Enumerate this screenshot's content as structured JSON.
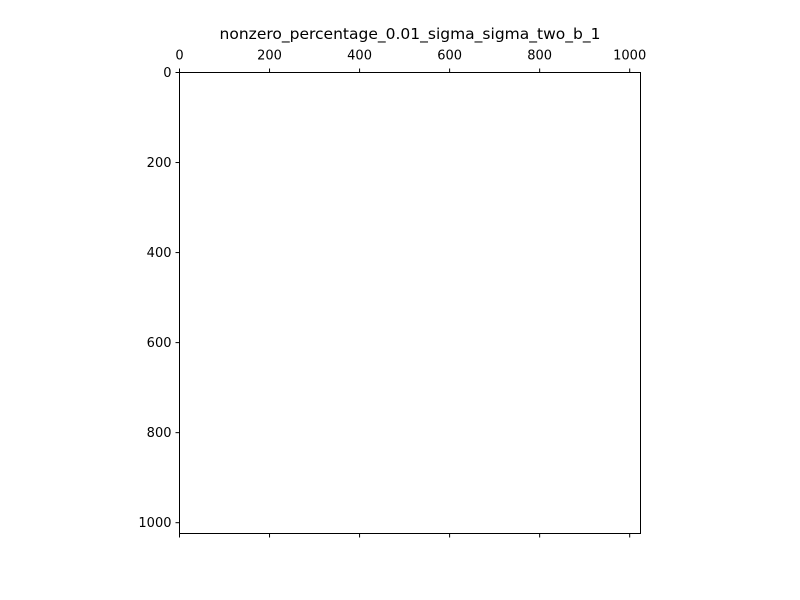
{
  "chart_data": {
    "type": "heatmap",
    "title": "nonzero_percentage_0.01_sigma_sigma_two_b_1",
    "xlabel": "",
    "ylabel": "",
    "x_axis_position": "top",
    "y_axis_inverted": true,
    "xlim": [
      0,
      1024
    ],
    "ylim": [
      1024,
      0
    ],
    "x_ticks": [
      0,
      200,
      400,
      600,
      800,
      1000
    ],
    "x_tick_labels": [
      "0",
      "200",
      "400",
      "600",
      "800",
      "1000"
    ],
    "y_ticks": [
      0,
      200,
      400,
      600,
      800,
      1000
    ],
    "y_tick_labels": [
      "0",
      "200",
      "400",
      "600",
      "800",
      "1000"
    ],
    "grid": false,
    "legend": "none",
    "colors": {
      "background": "#ffffff",
      "axis": "#000000",
      "text": "#000000"
    },
    "points": []
  }
}
